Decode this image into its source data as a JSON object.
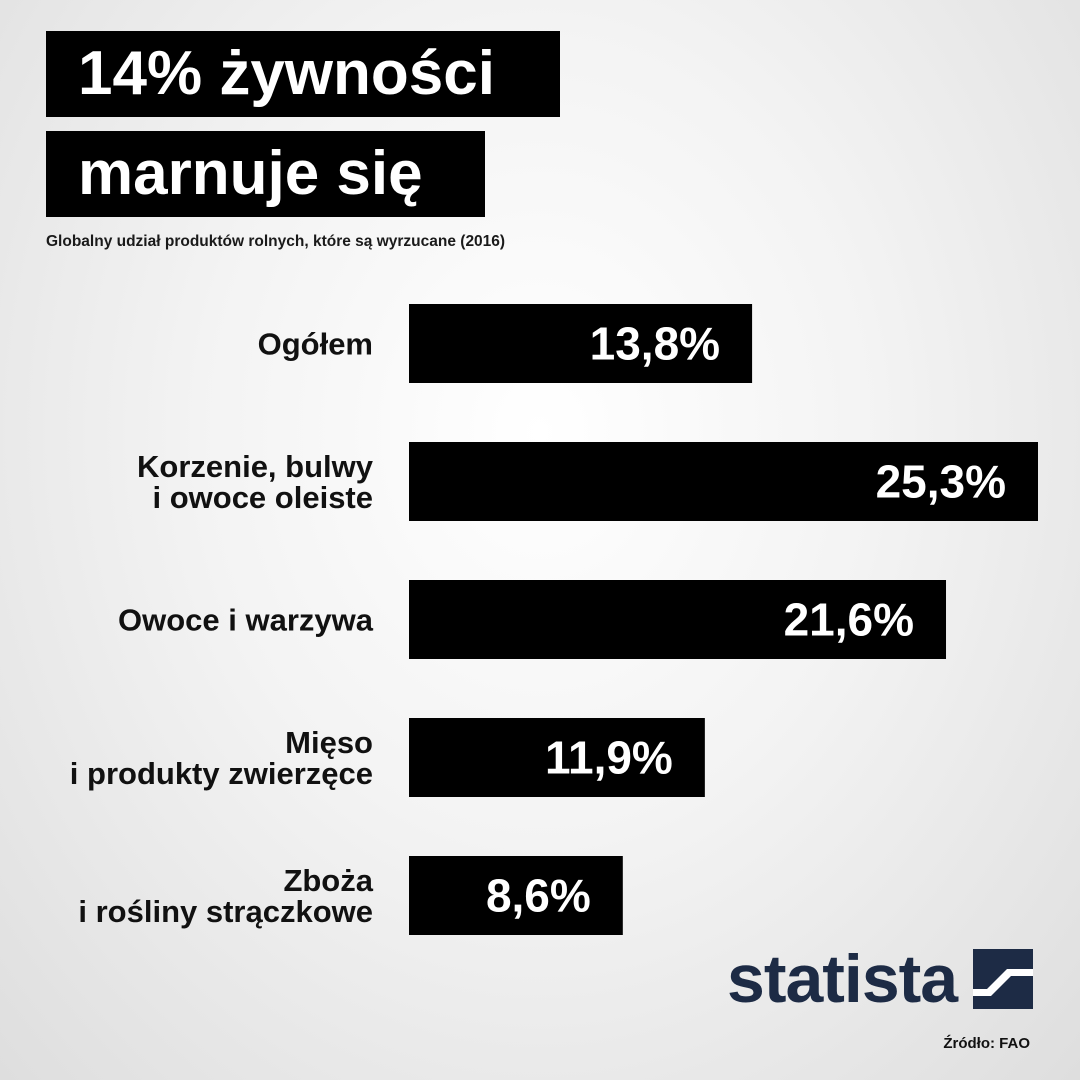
{
  "header": {
    "title_line_1": "14% żywności",
    "title_line_2": "marnuje się",
    "subtitle": "Globalny udział produktów rolnych, które są wyrzucane (2016)"
  },
  "chart_data": {
    "type": "bar",
    "orientation": "horizontal",
    "categories": [
      [
        "Ogółem"
      ],
      [
        "Korzenie, bulwy",
        "i owoce oleiste"
      ],
      [
        "Owoce i warzywa"
      ],
      [
        "Mięso",
        "i produkty zwierzęce"
      ],
      [
        "Zboża",
        "i rośliny strączkowe"
      ]
    ],
    "values": [
      13.8,
      25.3,
      21.6,
      11.9,
      8.6
    ],
    "value_labels": [
      "13,8%",
      "25,3%",
      "21,6%",
      "11,9%",
      "8,6%"
    ],
    "unit": "%",
    "xlim": [
      0,
      25.3
    ],
    "grid": false,
    "legend": "none",
    "bar_color": "#000000",
    "value_label_color": "#ffffff"
  },
  "branding": {
    "logo_text": "statista",
    "logo_icon": "statista-logo-icon",
    "logo_color": "#1d2b45"
  },
  "footer": {
    "source": "Źródło: FAO"
  }
}
